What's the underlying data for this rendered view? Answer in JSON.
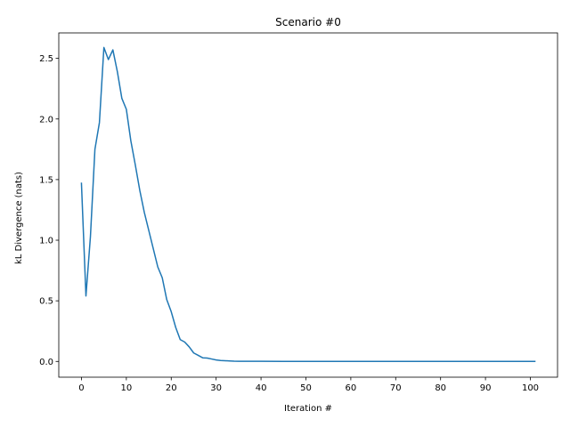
{
  "chart_data": {
    "type": "line",
    "title": "Scenario #0",
    "xlabel": "Iteration #",
    "ylabel": "kL Divergence (nats)",
    "xlim": [
      -5.05,
      106.05
    ],
    "ylim": [
      -0.13,
      2.71
    ],
    "xticks": [
      0,
      10,
      20,
      30,
      40,
      50,
      60,
      70,
      80,
      90,
      100
    ],
    "yticks": [
      0.0,
      0.5,
      1.0,
      1.5,
      2.0,
      2.5
    ],
    "xtick_labels": [
      "0",
      "10",
      "20",
      "30",
      "40",
      "50",
      "60",
      "70",
      "80",
      "90",
      "100"
    ],
    "ytick_labels": [
      "0.0",
      "0.5",
      "1.0",
      "1.5",
      "2.0",
      "2.5"
    ],
    "grid": false,
    "series": [
      {
        "color": "#1f77b4",
        "x": [
          0,
          1,
          2,
          3,
          4,
          5,
          6,
          7,
          8,
          9,
          10,
          11,
          12,
          13,
          14,
          15,
          16,
          17,
          18,
          19,
          20,
          21,
          22,
          23,
          24,
          25,
          26,
          27,
          28,
          29,
          30,
          31,
          32,
          33,
          34,
          35,
          40,
          45,
          50,
          55,
          60,
          65,
          70,
          75,
          80,
          85,
          90,
          95,
          101
        ],
        "y": [
          1.47,
          0.54,
          1.03,
          1.75,
          1.97,
          2.59,
          2.49,
          2.57,
          2.39,
          2.17,
          2.08,
          1.82,
          1.62,
          1.41,
          1.23,
          1.08,
          0.93,
          0.78,
          0.69,
          0.51,
          0.41,
          0.28,
          0.18,
          0.16,
          0.12,
          0.07,
          0.05,
          0.03,
          0.028,
          0.02,
          0.012,
          0.008,
          0.006,
          0.004,
          0.002,
          0.001,
          0.001,
          0.0,
          0.0,
          0.0,
          0.0,
          0.0,
          0.0,
          0.0,
          0.0,
          0.0,
          0.0,
          0.0,
          0.0
        ]
      }
    ]
  }
}
